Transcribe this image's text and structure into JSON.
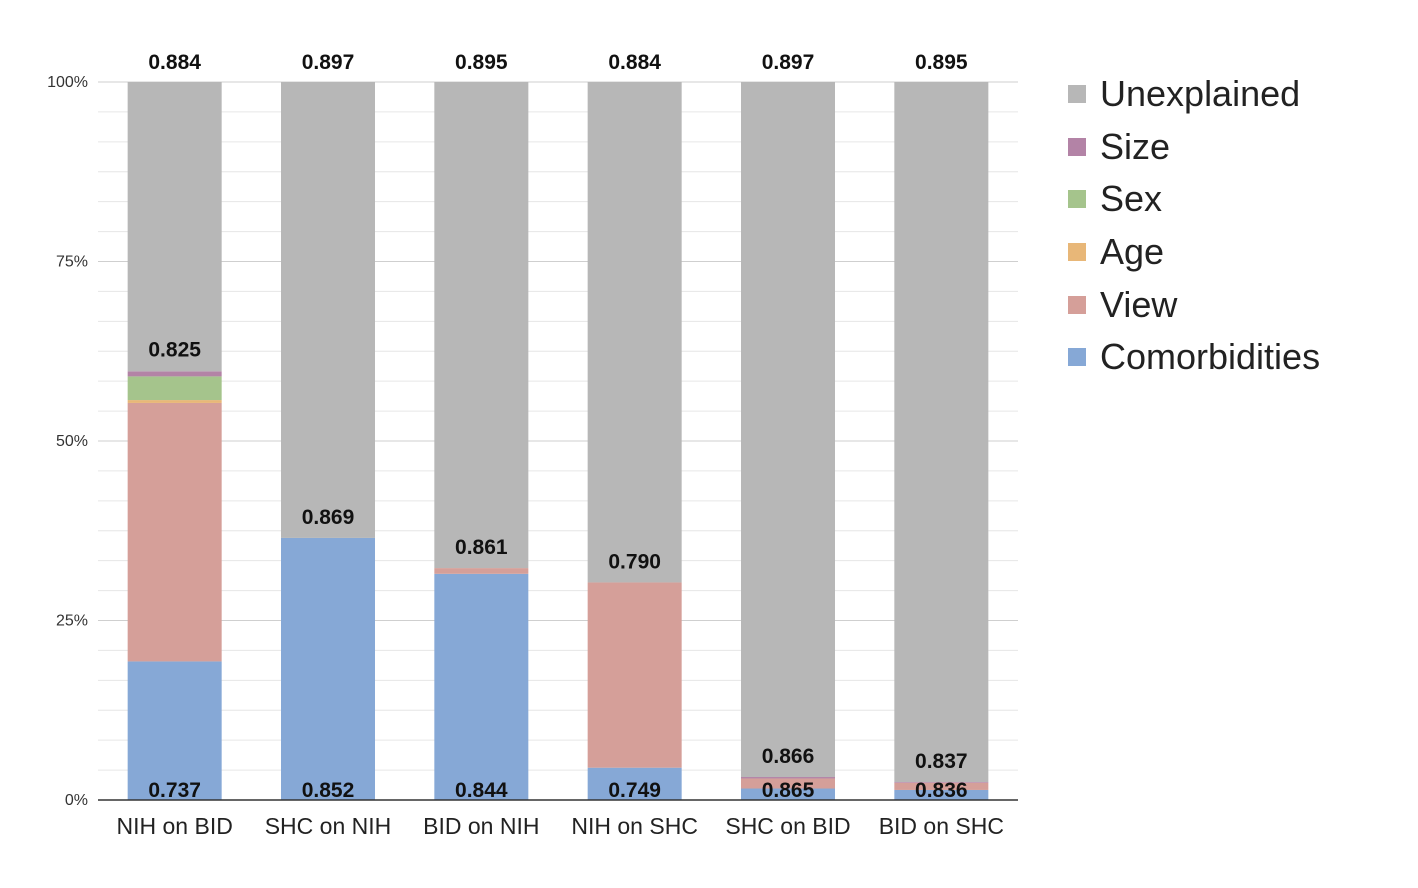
{
  "chart_data": {
    "type": "bar",
    "stacked": true,
    "categories": [
      "NIH on BID",
      "SHC on NIH",
      "BID on NIH",
      "NIH on SHC",
      "SHC on BID",
      "BID on SHC"
    ],
    "y_tick_labels": [
      "0%",
      "25%",
      "50%",
      "75%",
      "100%"
    ],
    "ylim": [
      0,
      100
    ],
    "grid": true,
    "legend_position": "right",
    "series": [
      {
        "name": "Comorbidities",
        "color": "#86a8d6",
        "values": [
          19.3,
          36.5,
          31.5,
          4.5,
          1.6,
          1.4
        ]
      },
      {
        "name": "View",
        "color": "#d59f99",
        "values": [
          36.0,
          0.0,
          0.8,
          25.8,
          1.4,
          1.0
        ]
      },
      {
        "name": "Age",
        "color": "#e8b778",
        "values": [
          0.4,
          0.0,
          0.0,
          0.0,
          0.0,
          0.0
        ]
      },
      {
        "name": "Sex",
        "color": "#a5c48c",
        "values": [
          3.3,
          0.0,
          0.0,
          0.0,
          0.0,
          0.0
        ]
      },
      {
        "name": "Size",
        "color": "#b383a6",
        "values": [
          0.7,
          0.0,
          0.0,
          0.0,
          0.2,
          0.1
        ]
      },
      {
        "name": "Unexplained",
        "color": "#b7b7b7",
        "values": [
          40.3,
          63.5,
          67.7,
          69.7,
          96.8,
          97.5
        ]
      }
    ],
    "legend_order": [
      "Unexplained",
      "Size",
      "Sex",
      "Age",
      "View",
      "Comorbidities"
    ],
    "annotations": {
      "top": [
        "0.884",
        "0.897",
        "0.895",
        "0.884",
        "0.897",
        "0.895"
      ],
      "middle": [
        "0.825",
        "0.869",
        "0.861",
        "0.790",
        "0.866",
        "0.837"
      ],
      "middle_at": [
        59.8,
        36.5,
        32.3,
        30.3,
        3.2,
        2.5
      ],
      "bottom": [
        "0.737",
        "0.852",
        "0.844",
        "0.749",
        "0.865",
        "0.836"
      ]
    }
  }
}
